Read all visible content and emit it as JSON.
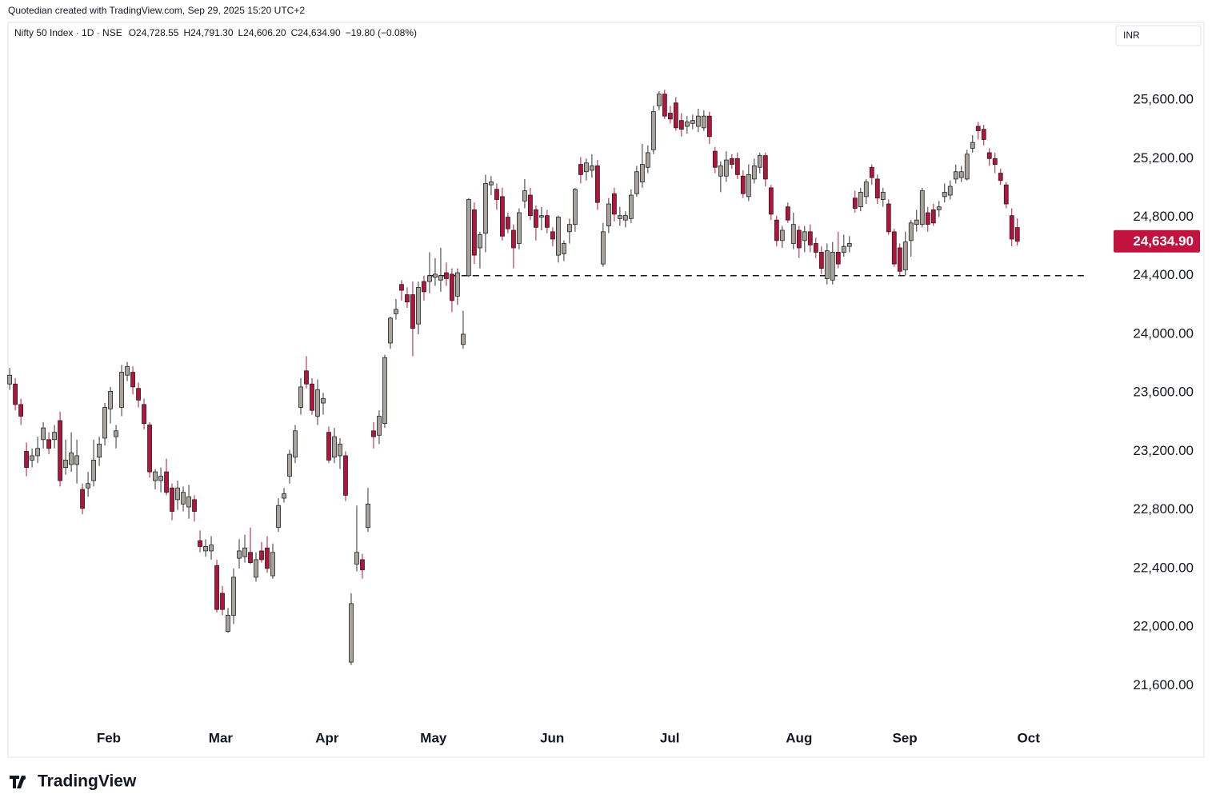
{
  "chart_data": {
    "type": "candlestick",
    "attribution": "Quotedian created with TradingView.com, Sep 29, 2025 15:20 UTC+2",
    "title": "Nifty 50 Index · 1D · NSE",
    "legend_values": [
      "O24,728.55",
      "H24,791.30",
      "L24,606.20",
      "C24,634.90",
      "−19.80 (−0.08%)"
    ],
    "currency": "INR",
    "brand": "TradingView",
    "up_color": "#a8a39a",
    "down_color": "#b5123d",
    "candles": [
      [
        23660,
        23770,
        23620,
        23720
      ],
      [
        23660,
        23700,
        23480,
        23520
      ],
      [
        23520,
        23560,
        23380,
        23440
      ],
      [
        23200,
        23260,
        23030,
        23090
      ],
      [
        23140,
        23220,
        23090,
        23170
      ],
      [
        23170,
        23300,
        23120,
        23220
      ],
      [
        23280,
        23400,
        23220,
        23360
      ],
      [
        23280,
        23330,
        23180,
        23220
      ],
      [
        23280,
        23380,
        23220,
        23330
      ],
      [
        23410,
        23470,
        22960,
        23000
      ],
      [
        23090,
        23280,
        23040,
        23140
      ],
      [
        23110,
        23330,
        23060,
        23190
      ],
      [
        23110,
        23280,
        22980,
        23170
      ],
      [
        22940,
        22980,
        22770,
        22810
      ],
      [
        22950,
        23060,
        22890,
        22980
      ],
      [
        23000,
        23280,
        22960,
        23140
      ],
      [
        23160,
        23300,
        23100,
        23250
      ],
      [
        23290,
        23530,
        23240,
        23500
      ],
      [
        23490,
        23640,
        23390,
        23610
      ],
      [
        23300,
        23380,
        23220,
        23340
      ],
      [
        23500,
        23790,
        23440,
        23740
      ],
      [
        23720,
        23810,
        23680,
        23780
      ],
      [
        23740,
        23780,
        23590,
        23640
      ],
      [
        23630,
        23670,
        23500,
        23550
      ],
      [
        23520,
        23560,
        23350,
        23390
      ],
      [
        23380,
        23400,
        23020,
        23060
      ],
      [
        23000,
        23080,
        22940,
        23060
      ],
      [
        23000,
        23090,
        22920,
        23030
      ],
      [
        23060,
        23150,
        22900,
        22920
      ],
      [
        22950,
        22980,
        22730,
        22790
      ],
      [
        22870,
        23000,
        22800,
        22950
      ],
      [
        22840,
        22960,
        22790,
        22920
      ],
      [
        22820,
        22970,
        22740,
        22890
      ],
      [
        22870,
        22900,
        22720,
        22790
      ],
      [
        22590,
        22660,
        22510,
        22550
      ],
      [
        22520,
        22600,
        22480,
        22550
      ],
      [
        22520,
        22620,
        22460,
        22560
      ],
      [
        22420,
        22460,
        22100,
        22120
      ],
      [
        22230,
        22280,
        22080,
        22120
      ],
      [
        21970,
        22130,
        21960,
        22080
      ],
      [
        22080,
        22400,
        22020,
        22340
      ],
      [
        22470,
        22600,
        22400,
        22520
      ],
      [
        22480,
        22630,
        22440,
        22540
      ],
      [
        22510,
        22680,
        22430,
        22440
      ],
      [
        22340,
        22510,
        22310,
        22460
      ],
      [
        22520,
        22580,
        22440,
        22460
      ],
      [
        22540,
        22620,
        22370,
        22400
      ],
      [
        22350,
        22570,
        22330,
        22510
      ],
      [
        22680,
        22880,
        22650,
        22830
      ],
      [
        22880,
        22950,
        22850,
        22910
      ],
      [
        23030,
        23210,
        22980,
        23180
      ],
      [
        23160,
        23380,
        23120,
        23340
      ],
      [
        23500,
        23700,
        23450,
        23640
      ],
      [
        23750,
        23850,
        23630,
        23660
      ],
      [
        23660,
        23700,
        23450,
        23480
      ],
      [
        23440,
        23690,
        23380,
        23620
      ],
      [
        23530,
        23600,
        23450,
        23560
      ],
      [
        23330,
        23370,
        23120,
        23140
      ],
      [
        23160,
        23360,
        23120,
        23300
      ],
      [
        23170,
        23290,
        23080,
        23250
      ],
      [
        23170,
        23200,
        22860,
        22900
      ],
      [
        21760,
        22230,
        21740,
        22160
      ],
      [
        22430,
        22830,
        22380,
        22510
      ],
      [
        22460,
        22500,
        22330,
        22390
      ],
      [
        22680,
        22950,
        22650,
        22840
      ],
      [
        23340,
        23400,
        23220,
        23300
      ],
      [
        23310,
        23480,
        23250,
        23440
      ],
      [
        23390,
        23860,
        23360,
        23840
      ],
      [
        23940,
        24120,
        23900,
        24110
      ],
      [
        24140,
        24240,
        24100,
        24170
      ],
      [
        24340,
        24370,
        24230,
        24300
      ],
      [
        24270,
        24320,
        24180,
        24220
      ],
      [
        24270,
        24360,
        23850,
        24040
      ],
      [
        24070,
        24360,
        24000,
        24320
      ],
      [
        24360,
        24400,
        24230,
        24290
      ],
      [
        24360,
        24560,
        24280,
        24400
      ],
      [
        24390,
        24520,
        24330,
        24410
      ],
      [
        24370,
        24590,
        24290,
        24400
      ],
      [
        24420,
        24490,
        24330,
        24380
      ],
      [
        24410,
        24450,
        24150,
        24230
      ],
      [
        24260,
        24450,
        24200,
        24420
      ],
      [
        23930,
        24160,
        23900,
        24000
      ],
      [
        24400,
        24930,
        24390,
        24920
      ],
      [
        24850,
        24900,
        24480,
        24540
      ],
      [
        24590,
        24700,
        24450,
        24680
      ],
      [
        24690,
        25090,
        24560,
        25030
      ],
      [
        25020,
        25080,
        24950,
        25040
      ],
      [
        24990,
        25030,
        24850,
        24920
      ],
      [
        24940,
        25000,
        24640,
        24670
      ],
      [
        24800,
        24830,
        24690,
        24720
      ],
      [
        24710,
        24750,
        24450,
        24590
      ],
      [
        24620,
        24860,
        24580,
        24830
      ],
      [
        24910,
        25060,
        24860,
        24980
      ],
      [
        24950,
        25000,
        24780,
        24810
      ],
      [
        24850,
        24880,
        24640,
        24730
      ],
      [
        24800,
        24870,
        24710,
        24810
      ],
      [
        24810,
        24850,
        24690,
        24730
      ],
      [
        24700,
        24730,
        24600,
        24650
      ],
      [
        24540,
        24810,
        24490,
        24800
      ],
      [
        24550,
        24640,
        24500,
        24620
      ],
      [
        24700,
        24790,
        24620,
        24750
      ],
      [
        24750,
        25000,
        24700,
        24990
      ],
      [
        25160,
        25210,
        25030,
        25090
      ],
      [
        25110,
        25200,
        25050,
        25170
      ],
      [
        25120,
        25230,
        25070,
        25150
      ],
      [
        25150,
        25190,
        24850,
        24900
      ],
      [
        24480,
        24760,
        24460,
        24700
      ],
      [
        24740,
        24930,
        24690,
        24890
      ],
      [
        24960,
        25000,
        24770,
        24820
      ],
      [
        24790,
        24870,
        24740,
        24810
      ],
      [
        24780,
        24840,
        24730,
        24810
      ],
      [
        24790,
        24990,
        24760,
        24950
      ],
      [
        24960,
        25150,
        24940,
        25110
      ],
      [
        25040,
        25300,
        25000,
        25160
      ],
      [
        25140,
        25290,
        25100,
        25240
      ],
      [
        25260,
        25560,
        25230,
        25520
      ],
      [
        25560,
        25660,
        25530,
        25640
      ],
      [
        25640,
        25670,
        25470,
        25490
      ],
      [
        25510,
        25560,
        25440,
        25470
      ],
      [
        25580,
        25620,
        25390,
        25410
      ],
      [
        25460,
        25510,
        25350,
        25400
      ],
      [
        25420,
        25490,
        25370,
        25450
      ],
      [
        25440,
        25500,
        25400,
        25460
      ],
      [
        25420,
        25540,
        25380,
        25490
      ],
      [
        25410,
        25530,
        25390,
        25490
      ],
      [
        25490,
        25520,
        25300,
        25350
      ],
      [
        25250,
        25280,
        25100,
        25140
      ],
      [
        25080,
        25180,
        24970,
        25150
      ],
      [
        25080,
        25250,
        25040,
        25190
      ],
      [
        25200,
        25230,
        25130,
        25160
      ],
      [
        25200,
        25240,
        25060,
        25090
      ],
      [
        25080,
        25120,
        24930,
        24960
      ],
      [
        24940,
        25160,
        24910,
        25090
      ],
      [
        25060,
        25200,
        25030,
        25150
      ],
      [
        25140,
        25240,
        25100,
        25220
      ],
      [
        25220,
        25240,
        25010,
        25060
      ],
      [
        25000,
        25020,
        24780,
        24820
      ],
      [
        24780,
        24810,
        24600,
        24640
      ],
      [
        24640,
        24740,
        24590,
        24710
      ],
      [
        24870,
        24900,
        24760,
        24780
      ],
      [
        24620,
        24830,
        24580,
        24750
      ],
      [
        24710,
        24740,
        24520,
        24590
      ],
      [
        24640,
        24740,
        24560,
        24700
      ],
      [
        24700,
        24750,
        24560,
        24610
      ],
      [
        24620,
        24660,
        24520,
        24560
      ],
      [
        24560,
        24600,
        24410,
        24450
      ],
      [
        24380,
        24620,
        24340,
        24570
      ],
      [
        24370,
        24630,
        24340,
        24560
      ],
      [
        24560,
        24700,
        24450,
        24480
      ],
      [
        24560,
        24680,
        24530,
        24600
      ],
      [
        24600,
        24670,
        24560,
        24620
      ],
      [
        24930,
        24980,
        24830,
        24860
      ],
      [
        24870,
        25000,
        24840,
        24970
      ],
      [
        24940,
        25060,
        24890,
        25040
      ],
      [
        25140,
        25160,
        25020,
        25070
      ],
      [
        25060,
        25090,
        24890,
        24930
      ],
      [
        24920,
        25000,
        24870,
        24970
      ],
      [
        24890,
        24920,
        24680,
        24700
      ],
      [
        24700,
        24720,
        24460,
        24480
      ],
      [
        24590,
        24620,
        24400,
        24430
      ],
      [
        24440,
        24700,
        24400,
        24630
      ],
      [
        24640,
        24780,
        24530,
        24760
      ],
      [
        24750,
        24850,
        24700,
        24780
      ],
      [
        24750,
        25000,
        24730,
        24980
      ],
      [
        24830,
        24870,
        24700,
        24750
      ],
      [
        24850,
        24890,
        24740,
        24760
      ],
      [
        24850,
        24910,
        24800,
        24870
      ],
      [
        24940,
        25030,
        24900,
        24970
      ],
      [
        24950,
        25050,
        24920,
        25010
      ],
      [
        25060,
        25160,
        25030,
        25110
      ],
      [
        25070,
        25150,
        25040,
        25110
      ],
      [
        25060,
        25260,
        25050,
        25230
      ],
      [
        25270,
        25360,
        25240,
        25310
      ],
      [
        25420,
        25450,
        25330,
        25390
      ],
      [
        25400,
        25430,
        25290,
        25330
      ],
      [
        25240,
        25270,
        25150,
        25200
      ],
      [
        25200,
        25240,
        25100,
        25160
      ],
      [
        25100,
        25130,
        25020,
        25050
      ],
      [
        25020,
        25040,
        24860,
        24890
      ],
      [
        24810,
        24860,
        24600,
        24650
      ],
      [
        24728.55,
        24791.3,
        24606.2,
        24634.9
      ]
    ],
    "xlim": [
      -0.3,
      196.9
    ],
    "xticks": [
      {
        "value": 17.7,
        "label": "Feb"
      },
      {
        "value": 37.7,
        "label": "Mar"
      },
      {
        "value": 56.7,
        "label": "Apr"
      },
      {
        "value": 75.7,
        "label": "May"
      },
      {
        "value": 96.9,
        "label": "Jun"
      },
      {
        "value": 117.9,
        "label": "Jul"
      },
      {
        "value": 141,
        "label": "Aug"
      },
      {
        "value": 159.9,
        "label": "Sep"
      },
      {
        "value": 182,
        "label": "Oct"
      }
    ],
    "ylim": [
      21340,
      26130
    ],
    "yticks": [
      {
        "value": 21600,
        "label": "21,600.00"
      },
      {
        "value": 22000,
        "label": "22,000.00"
      },
      {
        "value": 22400,
        "label": "22,400.00"
      },
      {
        "value": 22800,
        "label": "22,800.00"
      },
      {
        "value": 23200,
        "label": "23,200.00"
      },
      {
        "value": 23600,
        "label": "23,600.00"
      },
      {
        "value": 24000,
        "label": "24,000.00"
      },
      {
        "value": 24400,
        "label": "24,400.00"
      },
      {
        "value": 24800,
        "label": "24,800.00"
      },
      {
        "value": 25200,
        "label": "25,200.00"
      },
      {
        "value": 25600,
        "label": "25,600.00"
      }
    ],
    "last_price": {
      "value": 24634.9,
      "label": "24,634.90"
    },
    "support_line": {
      "value": 24400,
      "x": [
        74.7,
        192.3
      ]
    },
    "grid": false
  }
}
